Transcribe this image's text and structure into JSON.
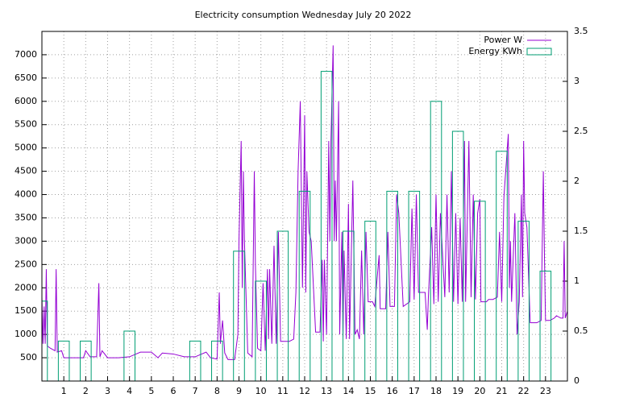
{
  "chart_data": {
    "type": "line",
    "title": "Electricity consumption Wednesday July 20 2022",
    "xlim": [
      0,
      24
    ],
    "xticks": [
      1,
      2,
      3,
      4,
      5,
      6,
      7,
      8,
      9,
      10,
      11,
      12,
      13,
      14,
      15,
      16,
      17,
      18,
      19,
      20,
      21,
      22,
      23
    ],
    "ylim": [
      0,
      7500
    ],
    "yticks": [
      500,
      1000,
      1500,
      2000,
      2500,
      3000,
      3500,
      4000,
      4500,
      5000,
      5500,
      6000,
      6500,
      7000
    ],
    "y2lim": [
      0,
      3.5
    ],
    "y2ticks": [
      0,
      0.5,
      1,
      1.5,
      2,
      2.5,
      3,
      3.5
    ],
    "grid": true,
    "legend": "top-right",
    "series": [
      {
        "name": "Power W",
        "color": "#9400d3",
        "x": [
          0,
          0.05,
          0.1,
          0.15,
          0.2,
          0.25,
          0.4,
          0.6,
          0.65,
          0.7,
          0.9,
          1.0,
          1.5,
          1.9,
          2.0,
          2.2,
          2.5,
          2.6,
          2.65,
          2.75,
          3.0,
          3.5,
          4.0,
          4.5,
          5.0,
          5.3,
          5.5,
          6.0,
          6.5,
          7.0,
          7.5,
          7.7,
          8.0,
          8.1,
          8.15,
          8.25,
          8.35,
          8.5,
          8.8,
          8.95,
          9.0,
          9.1,
          9.15,
          9.2,
          9.25,
          9.4,
          9.6,
          9.7,
          9.75,
          9.85,
          10.0,
          10.1,
          10.2,
          10.3,
          10.35,
          10.4,
          10.5,
          10.6,
          10.7,
          10.8,
          10.9,
          11.0,
          11.3,
          11.5,
          11.6,
          11.7,
          11.8,
          11.85,
          11.9,
          12.0,
          12.05,
          12.1,
          12.2,
          12.3,
          12.5,
          12.7,
          12.8,
          12.85,
          12.9,
          13.0,
          13.1,
          13.15,
          13.2,
          13.3,
          13.35,
          13.4,
          13.45,
          13.55,
          13.6,
          13.7,
          13.75,
          13.8,
          13.9,
          14.0,
          14.05,
          14.2,
          14.3,
          14.4,
          14.5,
          14.6,
          14.7,
          14.8,
          14.9,
          15.1,
          15.2,
          15.4,
          15.45,
          15.7,
          15.8,
          15.9,
          16.1,
          16.2,
          16.3,
          16.5,
          16.8,
          16.9,
          17.0,
          17.1,
          17.2,
          17.5,
          17.6,
          17.65,
          17.8,
          17.9,
          18.0,
          18.1,
          18.2,
          18.4,
          18.5,
          18.6,
          18.7,
          18.8,
          18.9,
          19.0,
          19.1,
          19.2,
          19.3,
          19.35,
          19.5,
          19.6,
          19.7,
          19.8,
          19.9,
          20.0,
          20.05,
          20.3,
          20.4,
          20.6,
          20.8,
          20.9,
          21.0,
          21.1,
          21.3,
          21.35,
          21.4,
          21.45,
          21.6,
          21.7,
          21.8,
          21.9,
          21.95,
          22.0,
          22.05,
          22.15,
          22.3,
          22.6,
          22.8,
          22.9,
          22.95,
          23.0,
          23.2,
          23.4,
          23.5,
          23.7,
          23.8,
          23.85,
          23.9,
          24
        ],
        "values": [
          1800,
          800,
          1600,
          800,
          2400,
          750,
          700,
          650,
          2400,
          620,
          650,
          500,
          500,
          500,
          650,
          520,
          520,
          2100,
          520,
          650,
          500,
          500,
          520,
          620,
          620,
          500,
          600,
          580,
          520,
          520,
          620,
          500,
          470,
          1900,
          800,
          1300,
          600,
          460,
          460,
          1000,
          3000,
          5150,
          2000,
          4500,
          3000,
          600,
          520,
          4500,
          2500,
          700,
          650,
          2100,
          650,
          2400,
          900,
          2400,
          800,
          2900,
          800,
          3200,
          850,
          850,
          850,
          900,
          1900,
          4500,
          6000,
          4000,
          2000,
          5700,
          1900,
          4500,
          3200,
          3000,
          1050,
          1050,
          2600,
          850,
          2600,
          1000,
          5150,
          3000,
          5150,
          7200,
          3000,
          4300,
          3000,
          6000,
          1000,
          3200,
          950,
          2800,
          900,
          3800,
          900,
          4300,
          1000,
          1100,
          900,
          2800,
          1000,
          3200,
          1700,
          1700,
          1600,
          2700,
          1550,
          1550,
          3200,
          1600,
          1600,
          4000,
          3600,
          1600,
          1700,
          3700,
          1750,
          4000,
          1900,
          1900,
          1100,
          1800,
          3300,
          1650,
          4000,
          1700,
          3600,
          1800,
          4000,
          1900,
          4500,
          1700,
          3600,
          1650,
          3500,
          1700,
          5150,
          1700,
          5150,
          1800,
          4000,
          1750,
          3600,
          3900,
          1700,
          1700,
          1750,
          1750,
          1800,
          3200,
          1700,
          3950,
          5300,
          2000,
          3000,
          1700,
          3600,
          1000,
          1700,
          4000,
          1800,
          5150,
          3600,
          3300,
          1250,
          1250,
          1300,
          4500,
          2700,
          1300,
          1300,
          1350,
          1400,
          1350,
          1350,
          3000,
          1350,
          1500
        ]
      },
      {
        "name": "Energy KWh",
        "color": "#009e73",
        "axis": "y2",
        "x": [
          0,
          1,
          2,
          3,
          4,
          5,
          6,
          7,
          8,
          9,
          10,
          11,
          12,
          13,
          14,
          15,
          16,
          17,
          18,
          19,
          20,
          21,
          22,
          23
        ],
        "values": [
          0.8,
          0.4,
          0.4,
          null,
          0.5,
          null,
          null,
          0.4,
          0.4,
          1.3,
          1.0,
          1.5,
          1.9,
          3.1,
          1.5,
          1.6,
          1.9,
          1.9,
          2.8,
          2.5,
          1.8,
          2.3,
          1.6,
          1.1
        ]
      }
    ]
  }
}
